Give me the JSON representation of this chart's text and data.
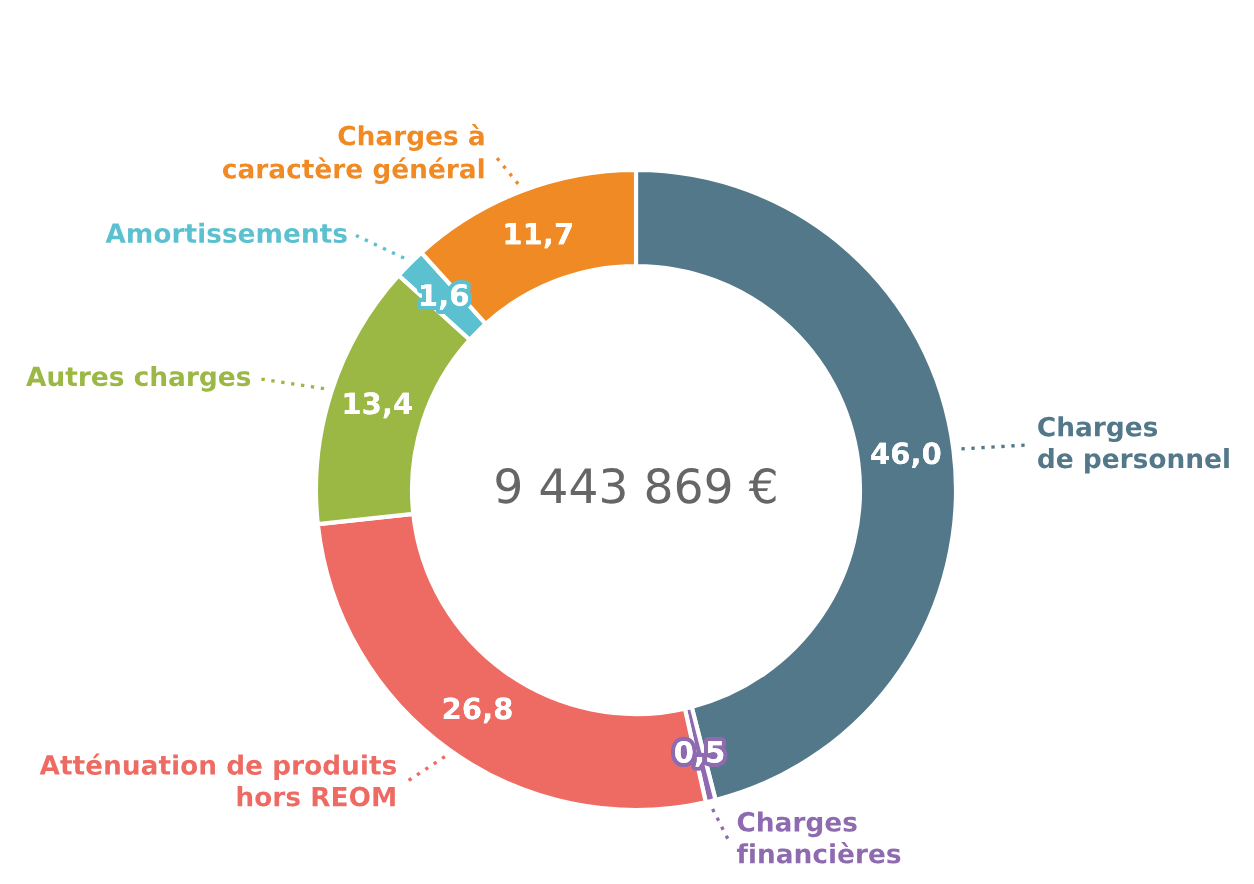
{
  "chart_data": {
    "type": "donut",
    "categories": [
      "Charges\nde personnel",
      "Charges\nfinancières",
      "Atténuation de produits\nhors REOM",
      "Autres charges",
      "Amortissements",
      "Charges à\ncaractère général"
    ],
    "values": [
      46.0,
      0.5,
      26.8,
      13.4,
      1.6,
      11.7
    ],
    "value_labels": [
      "46,0",
      "0,5",
      "26,8",
      "13,4",
      "1,6",
      "11,7"
    ],
    "colors": [
      "#52788a",
      "#8e6bb0",
      "#ee6b64",
      "#9ab843",
      "#5bc0cf",
      "#f08a24"
    ],
    "annotations": [
      "9 443 869 €"
    ]
  }
}
